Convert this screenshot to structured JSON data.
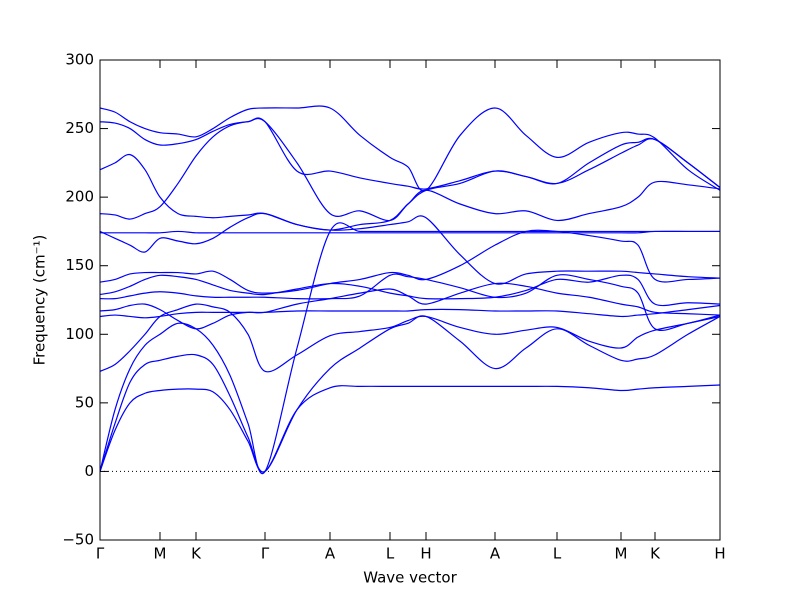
{
  "chart_data": {
    "type": "line",
    "xlabel": "Wave vector",
    "ylabel": "Frequency (cm⁻¹)",
    "color": "#0000ff",
    "zero_line": true,
    "xlim": [
      0,
      6.2
    ],
    "ylim": [
      -50,
      300
    ],
    "xticks": [
      {
        "value": 0,
        "label": "Γ"
      },
      {
        "value": 0.6,
        "label": "M"
      },
      {
        "value": 0.96,
        "label": "K"
      },
      {
        "value": 1.65,
        "label": "Γ"
      },
      {
        "value": 2.3,
        "label": "A"
      },
      {
        "value": 2.9,
        "label": "L"
      },
      {
        "value": 3.26,
        "label": "H"
      },
      {
        "value": 3.95,
        "label": "A"
      },
      {
        "value": 4.57,
        "label": "L"
      },
      {
        "value": 5.21,
        "label": "M"
      },
      {
        "value": 5.55,
        "label": "K"
      },
      {
        "value": 6.2,
        "label": "H"
      }
    ],
    "yticks": [
      {
        "value": -50,
        "label": "−50"
      },
      0,
      50,
      100,
      150,
      200,
      250,
      300
    ],
    "x": [
      0,
      0.15,
      0.3,
      0.45,
      0.6,
      0.78,
      0.96,
      1.13,
      1.3,
      1.48,
      1.65,
      1.97,
      2.3,
      2.6,
      2.9,
      3.08,
      3.26,
      3.6,
      3.95,
      4.26,
      4.57,
      4.89,
      5.21,
      5.38,
      5.55,
      5.88,
      6.2
    ],
    "series": [
      {
        "values": [
          0,
          30,
          50,
          57,
          59,
          60,
          60,
          58,
          45,
          22,
          0,
          45,
          61,
          62,
          62,
          62,
          62,
          62,
          62,
          62,
          62,
          61,
          59,
          60,
          61,
          62,
          63
        ]
      },
      {
        "values": [
          0,
          35,
          65,
          78,
          81,
          84,
          85,
          78,
          55,
          25,
          0,
          45,
          75,
          90,
          104,
          108,
          113,
          95,
          75,
          90,
          104,
          92,
          81,
          82,
          85,
          100,
          113
        ]
      },
      {
        "values": [
          0,
          45,
          75,
          92,
          100,
          108,
          104,
          92,
          70,
          35,
          0,
          90,
          175,
          175,
          175,
          175,
          175,
          175,
          175,
          175,
          175,
          175,
          175,
          175,
          175,
          175,
          175
        ]
      },
      {
        "values": [
          73,
          78,
          88,
          100,
          113,
          118,
          122,
          120,
          116,
          100,
          73,
          85,
          99,
          102,
          105,
          110,
          113,
          105,
          100,
          103,
          105,
          95,
          90,
          98,
          103,
          108,
          113
        ]
      },
      {
        "values": [
          113,
          114,
          113,
          112,
          113,
          115,
          116,
          116,
          116,
          116,
          116,
          117,
          117,
          117,
          117,
          117,
          118,
          118,
          117,
          117,
          117,
          115,
          113,
          114,
          115,
          118,
          121
        ]
      },
      {
        "values": [
          117,
          118,
          121,
          122,
          118,
          110,
          104,
          108,
          114,
          116,
          116,
          122,
          126,
          130,
          133,
          128,
          122,
          130,
          137,
          135,
          130,
          127,
          122,
          120,
          116,
          115,
          114
        ]
      },
      {
        "values": [
          126,
          126,
          128,
          130,
          131,
          130,
          128,
          127,
          127,
          127,
          127,
          126,
          126,
          128,
          143,
          142,
          140,
          134,
          127,
          130,
          143,
          140,
          135,
          130,
          104,
          108,
          114
        ]
      },
      {
        "values": [
          129,
          131,
          135,
          140,
          143,
          142,
          140,
          136,
          132,
          130,
          129,
          133,
          137,
          135,
          130,
          128,
          126,
          126,
          127,
          132,
          140,
          138,
          143,
          140,
          122,
          123,
          122
        ]
      },
      {
        "values": [
          138,
          140,
          144,
          145,
          145,
          145,
          144,
          146,
          140,
          132,
          130,
          132,
          137,
          140,
          145,
          143,
          140,
          150,
          165,
          175,
          175,
          172,
          168,
          165,
          140,
          140,
          141
        ]
      },
      {
        "values": [
          174,
          174,
          174,
          174,
          174,
          175,
          174,
          174,
          174,
          174,
          174,
          174,
          174,
          174,
          174,
          174,
          174,
          174,
          174,
          174,
          174,
          174,
          174,
          174,
          175,
          175,
          175
        ]
      },
      {
        "values": [
          175,
          170,
          165,
          160,
          170,
          168,
          166,
          170,
          178,
          185,
          188,
          180,
          176,
          177,
          180,
          182,
          185,
          158,
          137,
          144,
          146,
          146,
          146,
          145,
          144,
          142,
          141
        ]
      },
      {
        "values": [
          188,
          187,
          184,
          188,
          193,
          210,
          230,
          244,
          252,
          255,
          255,
          225,
          188,
          190,
          183,
          195,
          205,
          195,
          188,
          190,
          183,
          188,
          193,
          200,
          211,
          209,
          206
        ]
      },
      {
        "values": [
          220,
          225,
          231,
          220,
          200,
          188,
          186,
          185,
          186,
          187,
          188,
          180,
          176,
          180,
          183,
          195,
          205,
          210,
          219,
          215,
          210,
          220,
          232,
          238,
          242,
          225,
          207
        ]
      },
      {
        "values": [
          255,
          254,
          250,
          242,
          238,
          239,
          242,
          248,
          253,
          255,
          255,
          219,
          219,
          214,
          210,
          208,
          206,
          212,
          219,
          215,
          210,
          225,
          238,
          240,
          242,
          225,
          207
        ]
      },
      {
        "values": [
          265,
          262,
          255,
          250,
          247,
          246,
          244,
          250,
          258,
          264,
          265,
          265,
          265,
          245,
          229,
          222,
          205,
          245,
          265,
          245,
          229,
          240,
          247,
          246,
          243,
          220,
          205
        ]
      }
    ]
  }
}
